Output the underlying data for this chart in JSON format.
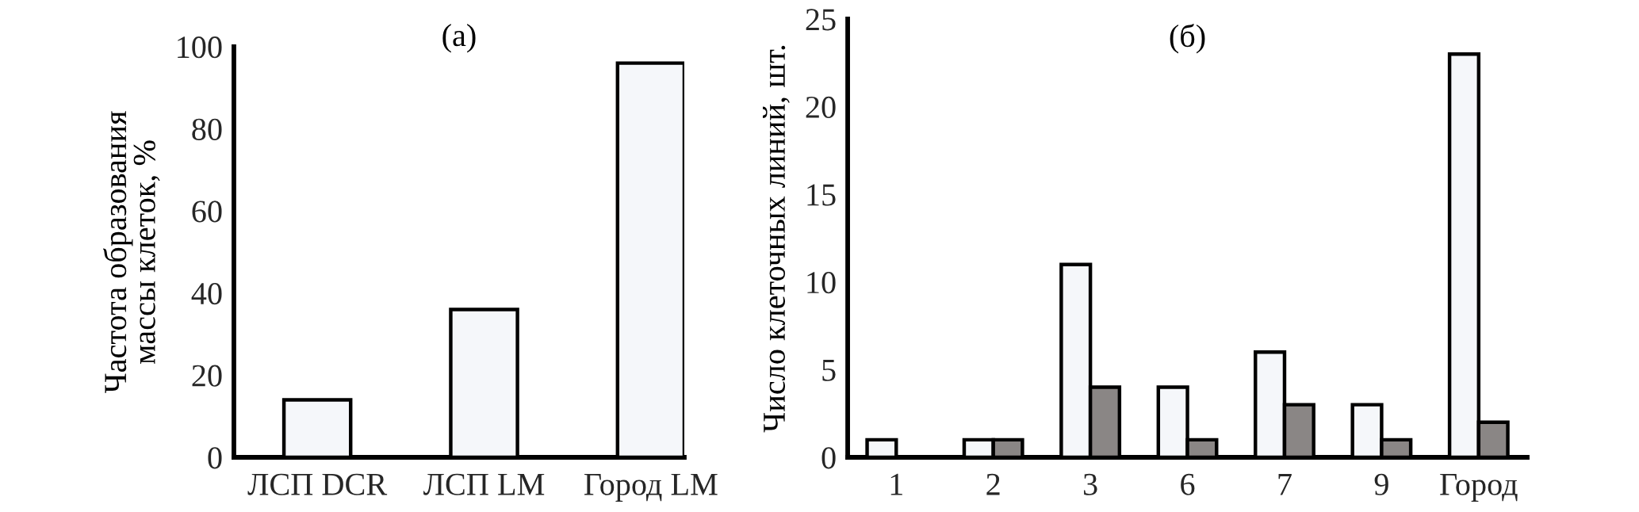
{
  "chart_data": [
    {
      "type": "bar",
      "title": "(а)",
      "ylabel": "Частота образования\nмассы клеток, %",
      "categories": [
        "ЛСП DCR",
        "ЛСП LM",
        "Город LM"
      ],
      "values": [
        14,
        36,
        96
      ],
      "color": "#f5f7fa",
      "ylim": [
        0,
        100
      ],
      "yticks": [
        0,
        20,
        40,
        60,
        80,
        100
      ],
      "grid": false
    },
    {
      "type": "bar",
      "title": "(б)",
      "ylabel": "Число клеточных линий, шт.",
      "categories": [
        "1",
        "2",
        "3",
        "6",
        "7",
        "9",
        "Город"
      ],
      "series": [
        {
          "color": "#f5f7fa",
          "values": [
            1,
            1,
            11,
            4,
            6,
            3,
            23
          ]
        },
        {
          "color": "#8a8685",
          "values": [
            null,
            1,
            4,
            1,
            3,
            1,
            2
          ]
        }
      ],
      "ylim": [
        0,
        25
      ],
      "yticks": [
        0,
        5,
        10,
        15,
        20,
        25
      ],
      "grid": false
    }
  ]
}
